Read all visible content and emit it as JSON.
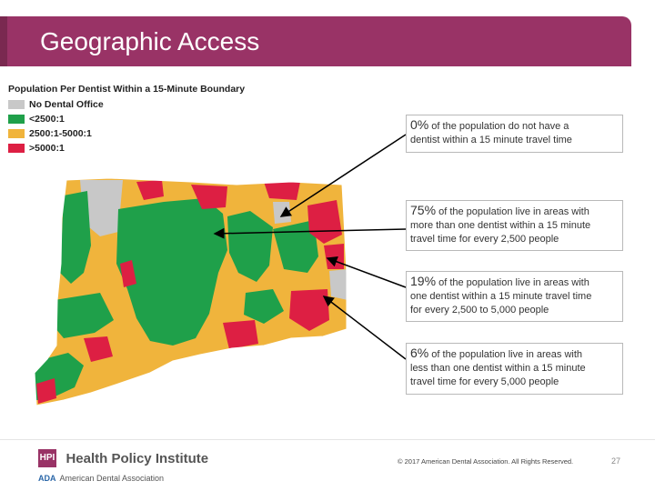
{
  "slide": {
    "title": "Geographic Access",
    "page_number": "27",
    "copyright": "© 2017 American Dental Association. All Rights Reserved."
  },
  "legend": {
    "title": "Population Per Dentist Within a 15-Minute Boundary",
    "items": [
      {
        "label": "No Dental Office",
        "color": "#c8c8c8"
      },
      {
        "label": "<2500:1",
        "color": "#1fa04a"
      },
      {
        "label": "2500:1-5000:1",
        "color": "#f0b43c"
      },
      {
        "label": ">5000:1",
        "color": "#dd1f43"
      }
    ]
  },
  "callouts": [
    {
      "pct": "0%",
      "text1": "of the population do not have a",
      "text2": "dentist within a 15 minute travel time",
      "text3": ""
    },
    {
      "pct": "75%",
      "text1": "of the population live in areas with",
      "text2": "more than one dentist within a 15 minute",
      "text3": "travel time for every 2,500 people"
    },
    {
      "pct": "19%",
      "text1": "of the population live in areas with",
      "text2": "one dentist within a 15 minute travel time",
      "text3": "for every 2,500 to 5,000 people"
    },
    {
      "pct": "6%",
      "text1": "of the population live in areas with",
      "text2": "less than one dentist within a 15 minute",
      "text3": "travel time for every 5,000 people"
    }
  ],
  "footer": {
    "hpi_mark": "HPI",
    "hpi_name": "Health Policy Institute",
    "ada_mark": "ADA",
    "ada_name": "American Dental Association"
  },
  "colors": {
    "title_bar": "#993366",
    "gray": "#c8c8c8",
    "green": "#1fa04a",
    "orange": "#f0b43c",
    "red": "#dd1f43"
  }
}
